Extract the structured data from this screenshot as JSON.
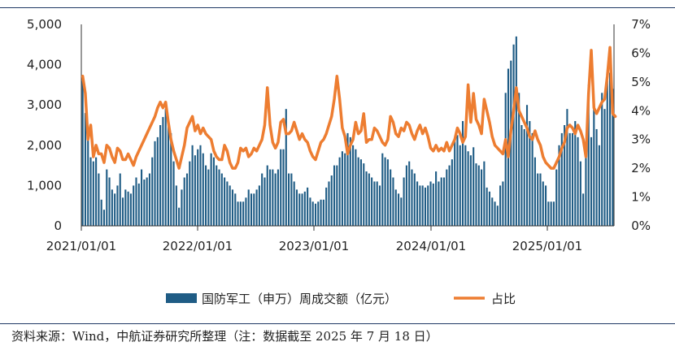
{
  "source_note": "资料来源：Wind，中航证券研究所整理（注：数据截至 2025 年 7 月 18 日）",
  "chart_data": {
    "type": "bar",
    "colors": {
      "bar": "#1f5c85",
      "line": "#ed7d31"
    },
    "x_ticks": [
      "2021/01/01",
      "2022/01/01",
      "2023/01/01",
      "2024/01/01",
      "2025/01/01"
    ],
    "y_left": {
      "ticks": [
        "0",
        "1,000",
        "2,000",
        "3,000",
        "4,000",
        "5,000"
      ],
      "lim": [
        0,
        5000
      ]
    },
    "y_right": {
      "ticks": [
        "0%",
        "1%",
        "2%",
        "3%",
        "4%",
        "5%",
        "6%",
        "7%"
      ],
      "lim": [
        0,
        7
      ]
    },
    "legend": {
      "position": "bottom"
    },
    "series": [
      {
        "name": "国防军工（申万）周成交额（亿元）",
        "type": "bar",
        "values": [
          3600,
          2800,
          2200,
          1700,
          1600,
          1700,
          1300,
          650,
          400,
          1400,
          1200,
          900,
          800,
          1000,
          1300,
          700,
          900,
          850,
          800,
          1000,
          1200,
          1050,
          1400,
          1150,
          1200,
          1300,
          1700,
          2100,
          2200,
          2500,
          2700,
          2900,
          2500,
          2300,
          1600,
          1000,
          450,
          900,
          1200,
          1300,
          1600,
          2000,
          1750,
          1900,
          2000,
          1800,
          1500,
          1400,
          1800,
          1700,
          1500,
          1400,
          1300,
          1200,
          1100,
          1000,
          900,
          800,
          600,
          600,
          600,
          700,
          900,
          800,
          800,
          900,
          1000,
          1300,
          1200,
          1500,
          1400,
          1400,
          1300,
          1400,
          1900,
          1900,
          2900,
          1300,
          1300,
          1100,
          900,
          800,
          800,
          850,
          950,
          700,
          600,
          550,
          600,
          650,
          650,
          950,
          1100,
          1250,
          1500,
          1500,
          1700,
          1850,
          1800,
          2300,
          2200,
          2000,
          1900,
          1700,
          1650,
          1550,
          1350,
          1300,
          1200,
          1100,
          1100,
          1000,
          1800,
          1700,
          1650,
          1400,
          1200,
          900,
          800,
          700,
          1200,
          1500,
          1600,
          1400,
          1300,
          1100,
          1000,
          1000,
          950,
          1000,
          1100,
          1050,
          1350,
          1100,
          1200,
          1200,
          1400,
          1500,
          1650,
          2100,
          2250,
          2000,
          2600,
          2000,
          1850,
          1750,
          1950,
          1550,
          1500,
          1400,
          1600,
          950,
          850,
          700,
          600,
          500,
          1000,
          1100,
          3300,
          3900,
          4100,
          4500,
          4700,
          3300,
          2500,
          2400,
          3000,
          2600,
          2300,
          1700,
          1300,
          1300,
          1100,
          1000,
          600,
          600,
          600,
          1400,
          2000,
          2300,
          2500,
          2900,
          2300,
          2300,
          2600,
          2200,
          1600,
          800,
          1700,
          3500,
          2200,
          3000,
          2400,
          2000,
          3300,
          2900,
          3600,
          3800,
          3400
        ]
      },
      {
        "name": "占比",
        "type": "line",
        "values": [
          5.2,
          4.6,
          3.0,
          3.5,
          2.4,
          2.8,
          2.5,
          2.5,
          2.2,
          2.8,
          2.7,
          2.4,
          2.2,
          2.7,
          2.6,
          2.3,
          2.3,
          2.5,
          2.3,
          2.1,
          2.4,
          2.6,
          2.8,
          3.0,
          3.2,
          3.4,
          3.6,
          3.8,
          4.1,
          4.3,
          4.1,
          4.3,
          3.6,
          3.0,
          2.6,
          2.3,
          2.0,
          2.4,
          2.8,
          3.4,
          3.6,
          3.8,
          3.3,
          3.5,
          3.2,
          3.4,
          3.2,
          3.1,
          3.0,
          2.6,
          2.4,
          2.3,
          2.3,
          2.8,
          2.6,
          2.2,
          2.0,
          2.0,
          2.2,
          2.7,
          2.6,
          2.7,
          2.4,
          2.5,
          2.7,
          2.6,
          2.8,
          3.0,
          3.5,
          4.8,
          3.5,
          2.9,
          2.7,
          2.9,
          3.6,
          3.7,
          3.2,
          3.2,
          3.3,
          3.6,
          3.3,
          3.0,
          3.2,
          3.0,
          2.9,
          2.6,
          2.4,
          2.3,
          2.6,
          2.9,
          3.0,
          3.2,
          3.5,
          3.8,
          4.4,
          5.2,
          4.4,
          3.4,
          3.1,
          2.5,
          2.8,
          3.0,
          3.6,
          3.2,
          3.3,
          3.9,
          2.9,
          3.0,
          3.0,
          3.4,
          3.3,
          3.1,
          2.9,
          2.8,
          3.0,
          3.8,
          3.6,
          3.2,
          3.1,
          3.4,
          3.3,
          3.6,
          3.5,
          3.2,
          3.0,
          3.3,
          3.5,
          3.2,
          3.4,
          3.1,
          2.7,
          2.6,
          2.8,
          2.6,
          2.7,
          2.6,
          2.9,
          2.6,
          2.8,
          3.0,
          3.4,
          3.2,
          2.9,
          3.1,
          4.9,
          3.6,
          4.6,
          3.7,
          3.5,
          3.2,
          4.4,
          4.0,
          3.6,
          3.1,
          2.8,
          2.7,
          2.6,
          2.5,
          3.0,
          2.4,
          3.3,
          4.0,
          4.8,
          4.0,
          3.8,
          3.6,
          3.4,
          3.1,
          3.0,
          3.3,
          3.0,
          2.8,
          2.4,
          2.2,
          2.1,
          2.0,
          2.0,
          2.2,
          2.4,
          2.7,
          2.9,
          3.4,
          3.5,
          3.4,
          3.2,
          3.5,
          3.3,
          3.0,
          2.4,
          4.6,
          6.1,
          4.1,
          3.9,
          4.1,
          4.3,
          4.4,
          5.2,
          6.2,
          3.9,
          3.8
        ]
      }
    ]
  }
}
